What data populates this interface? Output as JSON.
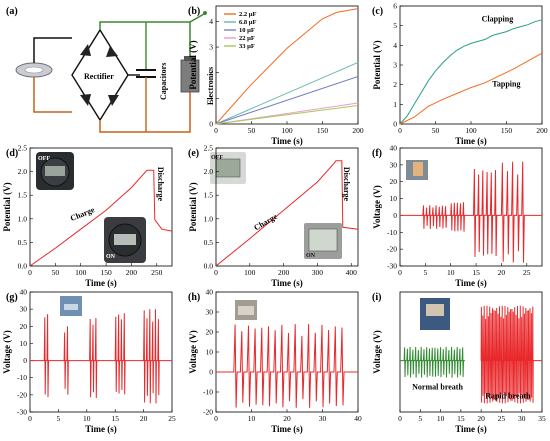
{
  "panel_letters": [
    "(a)",
    "(b)",
    "(c)",
    "(d)",
    "(e)",
    "(f)",
    "(g)",
    "(h)",
    "(i)"
  ],
  "schematic": {
    "rectifier": "Rectifier",
    "capacitors": "Capacitors",
    "electronics": "Electronics"
  },
  "photo_labels": {
    "off": "OFF",
    "on": "ON"
  },
  "chart_data": [
    {
      "panel": "(b)",
      "type": "line",
      "xlabel": "Time (s)",
      "ylabel": "Potential (V)",
      "xlim": [
        0,
        200
      ],
      "ylim": [
        0,
        4.6
      ],
      "xticks": [
        0,
        50,
        100,
        150,
        200
      ],
      "yticks": [
        0,
        1,
        2,
        3,
        4
      ],
      "legend_position": "top-left",
      "series": [
        {
          "name": "2.2 µF",
          "color": "#f26b21",
          "x": [
            0,
            50,
            100,
            150,
            170,
            200
          ],
          "y": [
            0,
            1.55,
            2.95,
            4.1,
            4.35,
            4.5
          ]
        },
        {
          "name": "6.8 µF",
          "color": "#6bb7b0",
          "x": [
            0,
            200
          ],
          "y": [
            0,
            2.4
          ]
        },
        {
          "name": "10 µF",
          "color": "#7a7fc9",
          "x": [
            0,
            200
          ],
          "y": [
            0,
            1.85
          ]
        },
        {
          "name": "22 µF",
          "color": "#e6a0c8",
          "x": [
            0,
            200
          ],
          "y": [
            0,
            0.82
          ]
        },
        {
          "name": "33 µF",
          "color": "#a8c85a",
          "x": [
            0,
            200
          ],
          "y": [
            0,
            0.72
          ]
        }
      ]
    },
    {
      "panel": "(c)",
      "type": "line",
      "xlabel": "Time (s)",
      "ylabel": "Potential (V)",
      "xlim": [
        0,
        200
      ],
      "ylim": [
        0,
        6
      ],
      "xticks": [
        0,
        50,
        100,
        150,
        200
      ],
      "yticks": [
        0,
        1,
        2,
        3,
        4,
        5,
        6
      ],
      "series": [
        {
          "name": "Clapping",
          "color": "#2a9d8f",
          "x": [
            0,
            10,
            20,
            30,
            40,
            50,
            60,
            70,
            80,
            90,
            100,
            110,
            120,
            130,
            140,
            150,
            160,
            170,
            180,
            190,
            200
          ],
          "y": [
            0,
            0.4,
            1.0,
            1.6,
            2.2,
            2.7,
            3.1,
            3.45,
            3.75,
            3.95,
            4.1,
            4.2,
            4.3,
            4.5,
            4.6,
            4.7,
            4.85,
            4.95,
            5.05,
            5.2,
            5.3
          ]
        },
        {
          "name": "Tapping",
          "color": "#f26b21",
          "x": [
            0,
            20,
            40,
            60,
            80,
            100,
            120,
            140,
            160,
            180,
            200
          ],
          "y": [
            0,
            0.35,
            0.9,
            1.25,
            1.55,
            1.85,
            2.1,
            2.45,
            2.8,
            3.2,
            3.6
          ]
        }
      ]
    },
    {
      "panel": "(d)",
      "type": "line",
      "xlabel": "Time (s)",
      "ylabel": "Potential (V)",
      "xlim": [
        0,
        280
      ],
      "ylim": [
        0,
        2.5
      ],
      "xticks": [
        0,
        50,
        100,
        150,
        200,
        250
      ],
      "yticks": [
        0.0,
        0.5,
        1.0,
        1.5,
        2.0,
        2.5
      ],
      "annotations": [
        "Charge",
        "Discharge"
      ],
      "series": [
        {
          "name": "",
          "color": "#e8282b",
          "x": [
            0,
            50,
            100,
            150,
            200,
            230,
            232,
            244,
            246,
            260,
            280
          ],
          "y": [
            0,
            0.38,
            0.78,
            1.18,
            1.66,
            2.02,
            2.03,
            2.03,
            0.98,
            0.78,
            0.74
          ]
        }
      ]
    },
    {
      "panel": "(e)",
      "type": "line",
      "xlabel": "Time (s)",
      "ylabel": "Potential (V)",
      "xlim": [
        0,
        420
      ],
      "ylim": [
        0,
        2.5
      ],
      "xticks": [
        0,
        100,
        200,
        300,
        400
      ],
      "yticks": [
        0.0,
        0.5,
        1.0,
        1.5,
        2.0,
        2.5
      ],
      "annotations": [
        "Charge",
        "Discharge"
      ],
      "series": [
        {
          "name": "",
          "color": "#e8282b",
          "x": [
            0,
            100,
            200,
            300,
            350,
            355,
            372,
            375,
            420
          ],
          "y": [
            0,
            0.58,
            1.18,
            1.78,
            2.18,
            2.23,
            2.23,
            0.82,
            0.78
          ]
        }
      ]
    },
    {
      "panel": "(f)",
      "type": "line",
      "xlabel": "Time (s)",
      "ylabel": "Voltage (V)",
      "xlim": [
        0,
        28
      ],
      "ylim": [
        -30,
        40
      ],
      "xticks": [
        0,
        5,
        10,
        15,
        20,
        25
      ],
      "yticks": [
        -30,
        -20,
        -10,
        0,
        10,
        20,
        30,
        40
      ],
      "series": [
        {
          "name": "",
          "color": "#e8282b",
          "bursts": [
            {
              "t0": 4.5,
              "t1": 9.5,
              "n": 8,
              "amp": [
                6,
                -8
              ]
            },
            {
              "t0": 10,
              "t1": 13,
              "n": 5,
              "amp": [
                8,
                -10
              ]
            },
            {
              "t0": 14.5,
              "t1": 19.5,
              "n": 6,
              "amp": [
                28,
                -25
              ]
            },
            {
              "t0": 20,
              "t1": 25,
              "n": 5,
              "amp": [
                32,
                -28
              ]
            }
          ]
        }
      ]
    },
    {
      "panel": "(g)",
      "type": "line",
      "xlabel": "Time (s)",
      "ylabel": "Voltage (V)",
      "xlim": [
        0,
        25
      ],
      "ylim": [
        -30,
        40
      ],
      "xticks": [
        0,
        5,
        10,
        15,
        20,
        25
      ],
      "yticks": [
        -30,
        -20,
        -10,
        0,
        10,
        20,
        30,
        40
      ],
      "series": [
        {
          "name": "",
          "color": "#e8282b",
          "bursts": [
            {
              "t0": 2.5,
              "t1": 3.5,
              "n": 2,
              "amp": [
                28,
                -22
              ]
            },
            {
              "t0": 6,
              "t1": 7,
              "n": 2,
              "amp": [
                20,
                -20
              ]
            },
            {
              "t0": 10.5,
              "t1": 12,
              "n": 3,
              "amp": [
                25,
                -22
              ]
            },
            {
              "t0": 15,
              "t1": 17,
              "n": 4,
              "amp": [
                28,
                -20
              ]
            },
            {
              "t0": 20,
              "t1": 23,
              "n": 6,
              "amp": [
                30,
                -25
              ]
            }
          ]
        }
      ]
    },
    {
      "panel": "(h)",
      "type": "line",
      "xlabel": "Time (s)",
      "ylabel": "Voltage (V)",
      "xlim": [
        0,
        40
      ],
      "ylim": [
        -20,
        40
      ],
      "xticks": [
        0,
        10,
        20,
        30,
        40
      ],
      "yticks": [
        -20,
        -10,
        0,
        10,
        20,
        30,
        40
      ],
      "series": [
        {
          "name": "",
          "color": "#e8282b",
          "bursts": [
            {
              "t0": 5,
              "t1": 37,
              "n": 17,
              "amp": [
                24,
                -18
              ]
            }
          ]
        }
      ]
    },
    {
      "panel": "(i)",
      "type": "line",
      "xlabel": "Time (s)",
      "ylabel": "Voltage (V)",
      "xlim": [
        0,
        35
      ],
      "ylim": [
        -30,
        40
      ],
      "xticks": [
        0,
        5,
        10,
        15,
        20,
        25,
        30,
        35
      ],
      "yticks": [],
      "annotations": [
        "Normal breath",
        "Rapid breath"
      ],
      "series": [
        {
          "name": "",
          "color": "#2e8b2e",
          "bursts": [
            {
              "t0": 1,
              "t1": 16,
              "n": 22,
              "amp": [
                8,
                -10
              ]
            }
          ]
        },
        {
          "name": "",
          "color": "#e8282b",
          "bursts": [
            {
              "t0": 20,
              "t1": 33,
              "n": 38,
              "amp": [
                32,
                -25
              ]
            }
          ]
        }
      ]
    }
  ]
}
